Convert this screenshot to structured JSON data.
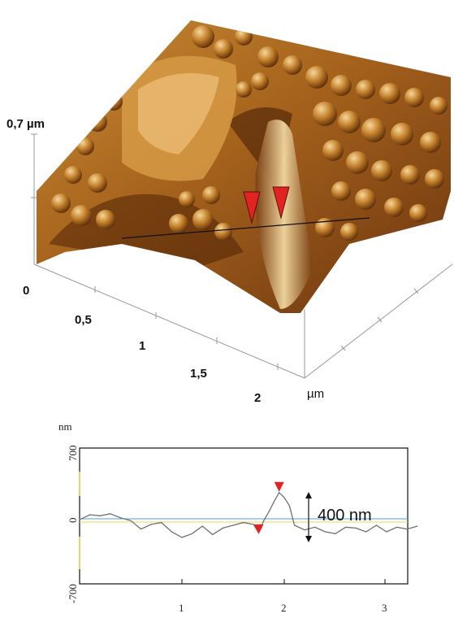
{
  "colors": {
    "surface_light": "#f0c878",
    "surface_mid": "#b8741f",
    "surface_dark": "#5a2a08",
    "marker": "#e32222",
    "zero_line": "#4aa3e0",
    "yellow_line": "#f2d34a",
    "profile": "#707070"
  },
  "chart_data": [
    {
      "type": "surface",
      "zlabel": "0,7 µm",
      "axis_ticks": [
        "0",
        "0,5",
        "1",
        "1,5",
        "2"
      ],
      "unit": "µm",
      "marker_count": 2
    },
    {
      "type": "line",
      "ylabel": "nm",
      "y_ticks": [
        "700",
        "0",
        "-700"
      ],
      "x_ticks": [
        "1",
        "2",
        "3"
      ],
      "ylim": [
        -700,
        700
      ],
      "xlim": [
        0,
        3.3
      ],
      "annotation": "400 nm",
      "series": [
        {
          "x": [
            0.0,
            0.1,
            0.2,
            0.3,
            0.4,
            0.5,
            0.6,
            0.7,
            0.8,
            0.9,
            1.0,
            1.1,
            1.2,
            1.3,
            1.4,
            1.5,
            1.6,
            1.7,
            1.75,
            1.8,
            1.85,
            1.9,
            1.95,
            2.0,
            2.05,
            2.1,
            2.2,
            2.3,
            2.4,
            2.5,
            2.6,
            2.7,
            2.8,
            2.9,
            3.0,
            3.1,
            3.2,
            3.3
          ],
          "y": [
            -10,
            40,
            30,
            50,
            10,
            -20,
            -110,
            -60,
            -40,
            -140,
            -200,
            -160,
            -80,
            -170,
            -100,
            -70,
            -40,
            -60,
            -150,
            -20,
            70,
            170,
            260,
            210,
            130,
            -70,
            -120,
            -90,
            -140,
            -160,
            -90,
            -100,
            -140,
            -70,
            -140,
            -90,
            -110,
            -80
          ]
        }
      ],
      "markers": [
        {
          "x": 1.75,
          "y": -130
        },
        {
          "x": 1.95,
          "y": 300
        }
      ]
    }
  ]
}
